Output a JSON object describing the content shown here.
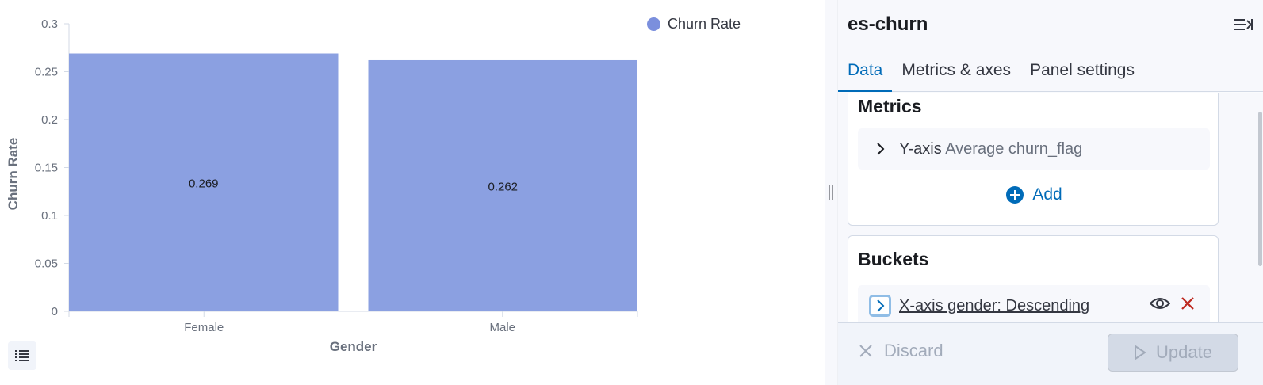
{
  "chart": {
    "legend_label": "Churn Rate",
    "legend_color": "#7b8fdd"
  },
  "chart_data": {
    "type": "bar",
    "categories": [
      "Female",
      "Male"
    ],
    "values": [
      0.269,
      0.262
    ],
    "data_labels": [
      "0.269",
      "0.262"
    ],
    "y_ticks": [
      "0",
      "0.05",
      "0.1",
      "0.15",
      "0.2",
      "0.25",
      "0.3"
    ],
    "ylim": [
      0,
      0.3
    ],
    "xlabel": "Gender",
    "ylabel": "Churn Rate",
    "bar_color": "#8ba0e1",
    "grid": false,
    "legend_position": "top-right"
  },
  "sidebar": {
    "title": "es-churn",
    "tabs": [
      {
        "label": "Data",
        "active": true
      },
      {
        "label": "Metrics & axes",
        "active": false
      },
      {
        "label": "Panel settings",
        "active": false
      }
    ],
    "metrics": {
      "title": "Metrics",
      "item_axis": "Y-axis",
      "item_desc": "Average churn_flag",
      "add_label": "Add"
    },
    "buckets": {
      "title": "Buckets",
      "item_label": "X-axis gender: Descending"
    },
    "footer": {
      "discard_label": "Discard",
      "update_label": "Update"
    }
  },
  "colors": {
    "accent": "#006bb8",
    "danger": "#bd271e"
  }
}
